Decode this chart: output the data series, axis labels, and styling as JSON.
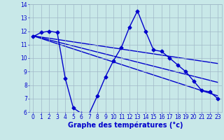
{
  "title": "Graphe des températures (°c)",
  "x_hours": [
    0,
    1,
    2,
    3,
    4,
    5,
    6,
    7,
    8,
    9,
    10,
    11,
    12,
    13,
    14,
    15,
    16,
    17,
    18,
    19,
    20,
    21,
    22,
    23
  ],
  "temp_main": [
    11.6,
    11.9,
    12.0,
    11.9,
    8.5,
    6.3,
    5.9,
    5.9,
    7.2,
    8.6,
    9.8,
    10.8,
    12.3,
    13.5,
    12.0,
    10.6,
    10.5,
    10.0,
    9.5,
    9.0,
    8.3,
    7.6,
    7.5,
    7.0
  ],
  "trend1_x": [
    0,
    23
  ],
  "trend1_y": [
    11.65,
    9.6
  ],
  "trend2_x": [
    0,
    23
  ],
  "trend2_y": [
    11.65,
    8.2
  ],
  "trend3_x": [
    0,
    23
  ],
  "trend3_y": [
    11.65,
    7.2
  ],
  "ylim": [
    6,
    14
  ],
  "xlim": [
    -0.5,
    23.5
  ],
  "yticks": [
    6,
    7,
    8,
    9,
    10,
    11,
    12,
    13,
    14
  ],
  "xticks": [
    0,
    1,
    2,
    3,
    4,
    5,
    6,
    7,
    8,
    9,
    10,
    11,
    12,
    13,
    14,
    15,
    16,
    17,
    18,
    19,
    20,
    21,
    22,
    23
  ],
  "line_color": "#0000cc",
  "bg_color": "#c8e8e8",
  "plot_bg": "#c8e8e8",
  "grid_color": "#a0b8c8",
  "marker": "D",
  "marker_size": 2.5,
  "line_width": 1.0,
  "tick_color": "#0000cc",
  "font_size_label": 7,
  "font_size_tick": 5.5
}
